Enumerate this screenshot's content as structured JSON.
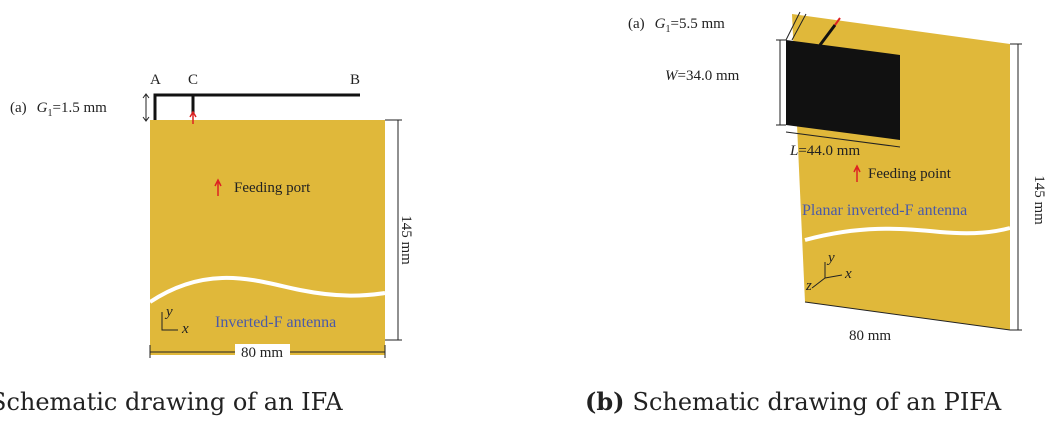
{
  "left_figure": {
    "label": {
      "prefix": "(a)",
      "var": "G",
      "sub": "1",
      "rest": "=1.5 mm"
    },
    "points": [
      "A",
      "C",
      "B"
    ],
    "feed": "Feeding port",
    "height": "145 mm",
    "width": "80 mm",
    "axes": [
      "y",
      "x"
    ],
    "name": "Inverted-F antenna",
    "caption": "Schematic drawing of an IFA"
  },
  "right_figure": {
    "label": {
      "prefix": "(a)",
      "var": "G",
      "sub": "1",
      "rest": "=5.5 mm"
    },
    "w": {
      "var": "W",
      "rest": "=34.0 mm"
    },
    "l": {
      "var": "L",
      "rest": "=44.0 mm"
    },
    "feed": "Feeding point",
    "name": "Planar inverted-F antenna",
    "height": "145 mm",
    "width": "80 mm",
    "axes": [
      "y",
      "x",
      "z"
    ],
    "caption": {
      "tag": "(b)",
      "text": "Schematic drawing of an PIFA"
    }
  }
}
